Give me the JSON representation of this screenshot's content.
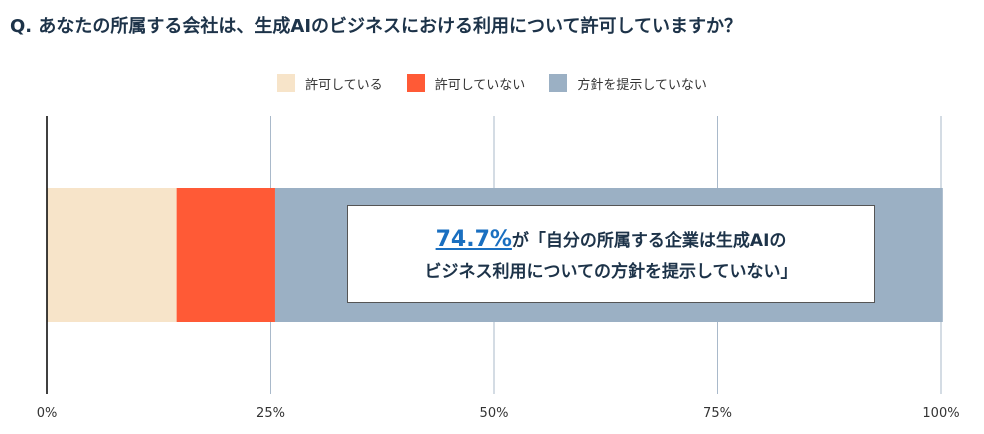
{
  "title": "Q. あなたの所属する会社は、生成AIのビジネスにおける利用について許可していますか？",
  "legend": [
    {
      "label": "許可している",
      "color": "#f7e4c9"
    },
    {
      "label": "許可していない",
      "color": "#ff5a36"
    },
    {
      "label": "方針を提示していない",
      "color": "#9bb0c4"
    }
  ],
  "callout": {
    "percent": "74.7%",
    "line1_rest": "が「自分の所属する企業は生成AIの",
    "line2": "ビジネス利用についての方針を提示していない」"
  },
  "chart_data": {
    "type": "bar",
    "orientation": "horizontal-stacked",
    "series": [
      {
        "name": "許可している",
        "values": [
          14.5
        ]
      },
      {
        "name": "許可していない",
        "values": [
          11.0
        ]
      },
      {
        "name": "方針を提示していない",
        "values": [
          74.7
        ]
      }
    ],
    "xlim": [
      0,
      100
    ],
    "x_ticks": [
      "0%",
      "25%",
      "50%",
      "75%",
      "100%"
    ],
    "grid": true
  }
}
